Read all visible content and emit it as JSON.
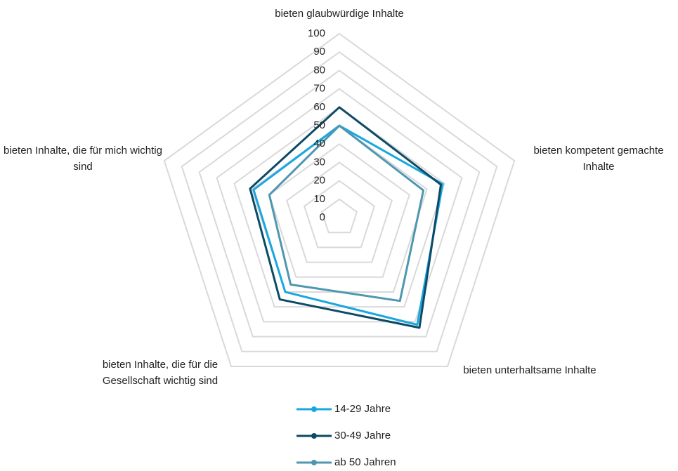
{
  "chart_data": {
    "type": "radar",
    "categories": [
      "bieten glaubwürdige Inhalte",
      "bieten kompetent gemachte Inhalte",
      "bieten unterhaltsame Inhalte",
      "bieten Inhalte, die für die Gesellschaft wichtig sind",
      "bieten Inhalte, die für mich wichtig sind"
    ],
    "series": [
      {
        "name": "14-29 Jahre",
        "color": "#1aa7e0",
        "values": [
          50,
          59,
          72,
          50,
          49
        ]
      },
      {
        "name": "30-49 Jahre",
        "color": "#0d4a66",
        "values": [
          60,
          58,
          74,
          55,
          51
        ]
      },
      {
        "name": "ab 50 Jahren",
        "color": "#4f97b0",
        "values": [
          50,
          48,
          56,
          45,
          40
        ]
      }
    ],
    "ylim": [
      0,
      100
    ],
    "yticks": [
      0,
      10,
      20,
      30,
      40,
      50,
      60,
      70,
      80,
      90,
      100
    ],
    "grid": true
  }
}
